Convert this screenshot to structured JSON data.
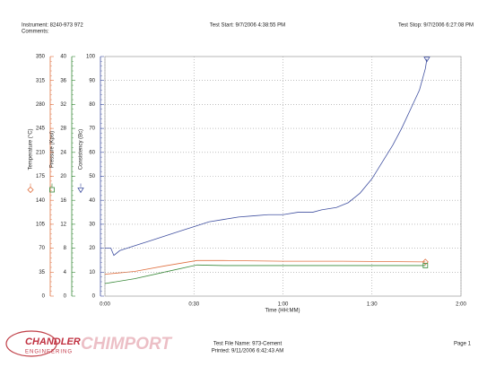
{
  "header": {
    "instrument": "Instrument: 8240-973 972",
    "comments": "Comments:",
    "test_start": "Test Start: 9/7/2006 4:38:55 PM",
    "test_stop": "Test Stop: 9/7/2006 6:27:08 PM"
  },
  "chart_data": {
    "type": "line",
    "xlabel": "Time (HH:MM)",
    "xlim": [
      0,
      120
    ],
    "xticks": [
      {
        "value": 0,
        "label": "0:00"
      },
      {
        "value": 30,
        "label": "0:30"
      },
      {
        "value": 60,
        "label": "1:00"
      },
      {
        "value": 90,
        "label": "1:30"
      },
      {
        "value": 120,
        "label": "2:00"
      }
    ],
    "grid": true,
    "series": [
      {
        "name": "Temperature (°C)",
        "color": "#e07040",
        "marker": "diamond",
        "ylim": [
          0,
          350
        ],
        "yticks": [
          0,
          35,
          70,
          105,
          140,
          175,
          210,
          245,
          280,
          315,
          350
        ],
        "x": [
          0,
          10,
          20,
          31,
          40,
          60,
          80,
          108
        ],
        "values": [
          32,
          36,
          44,
          52,
          52,
          51,
          51,
          50
        ]
      },
      {
        "name": "Pressure (Kpsi)",
        "color": "#3a8a3a",
        "marker": "square",
        "ylim": [
          0,
          40
        ],
        "yticks": [
          0,
          4,
          8,
          12,
          16,
          20,
          24,
          28,
          32,
          36,
          40
        ],
        "x": [
          0,
          10,
          20,
          31,
          40,
          60,
          80,
          108
        ],
        "values": [
          2.1,
          2.9,
          4.0,
          5.2,
          5.1,
          5.1,
          5.1,
          5.1
        ]
      },
      {
        "name": "Consistency (Bc)",
        "color": "#4050a0",
        "marker": "triangle",
        "ylim": [
          0,
          100
        ],
        "yticks": [
          0,
          10,
          20,
          30,
          40,
          50,
          60,
          70,
          80,
          90,
          100
        ],
        "x": [
          0,
          2,
          3,
          5,
          10,
          15,
          20,
          25,
          30,
          35,
          40,
          45,
          50,
          55,
          60,
          65,
          70,
          73,
          78,
          82,
          86,
          90,
          94,
          97,
          100,
          103,
          106,
          108,
          108.5
        ],
        "values": [
          20,
          20,
          17,
          19,
          21,
          23,
          25,
          27,
          29,
          31,
          32,
          33,
          33.5,
          34,
          34,
          35,
          35,
          36,
          37,
          39,
          43,
          49,
          57,
          63,
          70,
          78,
          86,
          95,
          99
        ]
      }
    ]
  },
  "footer": {
    "file_name": "Test File Name: 973-Cement",
    "printed": "Printed: 9/11/2006 6:42:43 AM",
    "page": "Page 1",
    "logo_main": "CHANDLER",
    "logo_sub": "ENGINEERING",
    "watermark": "CHIMPORT"
  }
}
